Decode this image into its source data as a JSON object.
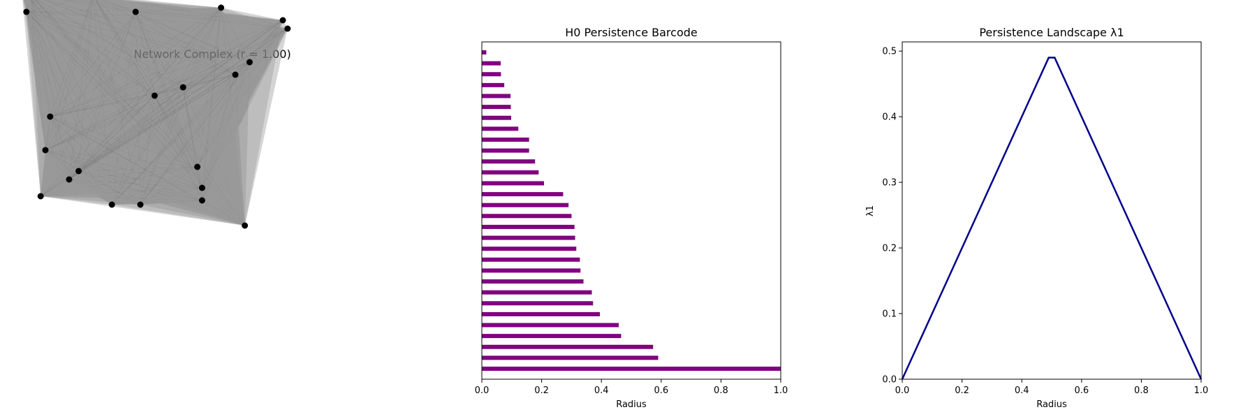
{
  "chart_data": [
    {
      "type": "network",
      "title": "Network Complex (r = 1.00)",
      "node_color": "#000000",
      "fill_color": "#808080",
      "nodes": [
        [
          -0.4,
          0.53
        ],
        [
          -0.39,
          0.48
        ],
        [
          -0.38,
          0.52
        ],
        [
          -0.25,
          0.52
        ],
        [
          -0.16,
          0.48
        ],
        [
          0.02,
          0.49
        ],
        [
          0.15,
          0.46
        ],
        [
          0.16,
          0.44
        ],
        [
          0.08,
          0.36
        ],
        [
          0.05,
          0.33
        ],
        [
          -0.06,
          0.3
        ],
        [
          -0.34,
          0.23
        ],
        [
          -0.12,
          0.28
        ],
        [
          -0.35,
          0.15
        ],
        [
          -0.3,
          0.08
        ],
        [
          -0.36,
          0.04
        ],
        [
          -0.03,
          0.11
        ],
        [
          -0.02,
          0.06
        ],
        [
          -0.21,
          0.02
        ],
        [
          -0.15,
          0.02
        ],
        [
          0.07,
          -0.03
        ],
        [
          -0.28,
          0.1
        ],
        [
          -0.02,
          0.03
        ]
      ]
    },
    {
      "type": "bar",
      "orientation": "horizontal",
      "title": "H0 Persistence Barcode",
      "xlabel": "Radius",
      "ylabel": "",
      "xlim": [
        0.0,
        1.0
      ],
      "xticks": [
        "0.0",
        "0.2",
        "0.4",
        "0.6",
        "0.8",
        "1.0"
      ],
      "color": "#800080",
      "bars": [
        1.0,
        0.59,
        0.573,
        0.466,
        0.458,
        0.395,
        0.372,
        0.368,
        0.34,
        0.33,
        0.328,
        0.316,
        0.312,
        0.31,
        0.3,
        0.29,
        0.272,
        0.208,
        0.19,
        0.178,
        0.158,
        0.158,
        0.122,
        0.098,
        0.097,
        0.096,
        0.075,
        0.064,
        0.063,
        0.015
      ]
    },
    {
      "type": "line",
      "title": "Persistence Landscape λ1",
      "xlabel": "Radius",
      "ylabel": "λ1",
      "xlim": [
        0.0,
        1.0
      ],
      "ylim": [
        0.0,
        0.514
      ],
      "xticks": [
        "0.0",
        "0.2",
        "0.4",
        "0.6",
        "0.8",
        "1.0"
      ],
      "yticks": [
        "0.0",
        "0.1",
        "0.2",
        "0.3",
        "0.4",
        "0.5"
      ],
      "color": "#00008b",
      "x": [
        0.0,
        0.49,
        0.51,
        1.0
      ],
      "y": [
        0.0,
        0.49,
        0.49,
        0.0
      ]
    }
  ]
}
